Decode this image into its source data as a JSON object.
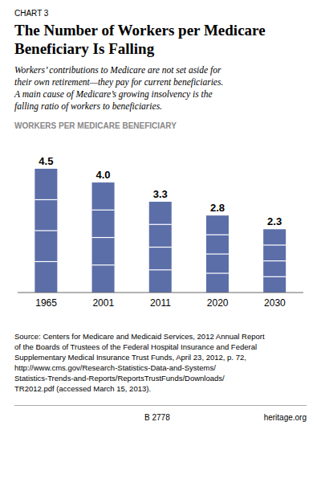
{
  "chart_data": {
    "type": "bar",
    "title": [
      "The Number of Workers per Medicare",
      "Beneficiary Is Falling"
    ],
    "subtitle": [
      "Workers’ contributions to Medicare are not set aside for",
      "their own retirement—they pay for current beneficiaries.",
      "A main cause of Medicare’s growing insolvency is the",
      "falling ratio of workers to beneficiaries."
    ],
    "y_label": "WORKERS PER MEDICARE BENEFICIARY",
    "categories": [
      "1965",
      "2001",
      "2011",
      "2020",
      "2030"
    ],
    "values": [
      4.5,
      4.0,
      3.3,
      2.8,
      2.3
    ],
    "value_labels": [
      "4.5",
      "4.0",
      "3.3",
      "2.8",
      "2.3"
    ],
    "color": "#5b6ea8",
    "ylim": [
      0,
      5.2
    ],
    "data_labels": true,
    "tick_labels": "x",
    "grid": false,
    "annotations": {
      "chart_label": "CHART 3",
      "source": [
        "Source: Centers for Medicare and Medicaid Services, 2012 Annual Report",
        "of the Boards of Trustees of the Federal Hospital Insurance and Federal",
        "Supplementary Medical Insurance Trust Funds, April 23, 2012, p. 72,",
        "http://www.cms.gov/Research-Statistics-Data-and-Systems/",
        "Statistics-Trends-and-Reports/ReportsTrustFunds/Downloads/",
        "TR2012.pdf (accessed March 15, 2013)."
      ],
      "footer": [
        "B 2778",
        "heritage.org"
      ]
    }
  }
}
